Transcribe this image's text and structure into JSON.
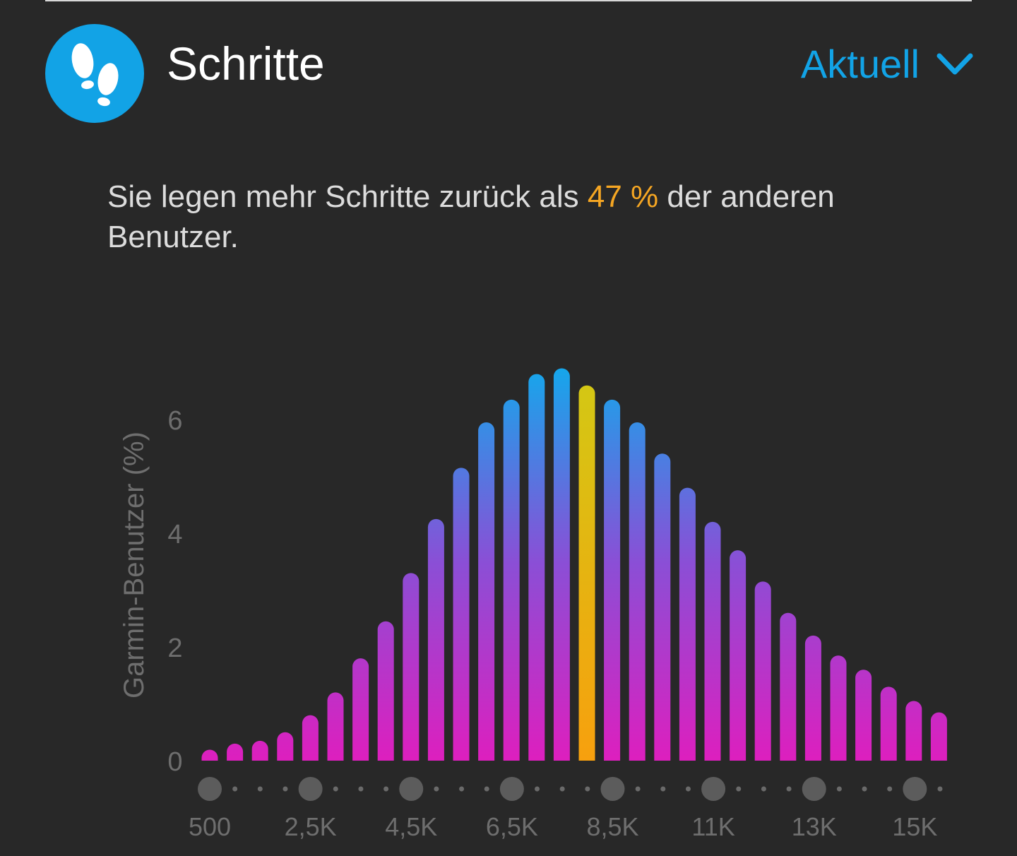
{
  "header": {
    "title": "Schritte",
    "period_label": "Aktuell",
    "icon": "footprints-icon",
    "icon_bg_color": "#12a3e6"
  },
  "summary": {
    "text_before": "Sie legen mehr Schritte zurück als ",
    "highlight": "47 %",
    "text_after": " der anderen Benutzer.",
    "highlight_color": "#f5a623"
  },
  "chart_data": {
    "type": "bar",
    "ylabel": "Garmin-Benutzer (%)",
    "y_ticks": [
      "0",
      "2",
      "4",
      "6"
    ],
    "ylim": [
      0,
      7
    ],
    "x_tick_labels": [
      "500",
      "2,5K",
      "4,5K",
      "6,5K",
      "8,5K",
      "11K",
      "13K",
      "15K"
    ],
    "values": [
      0.1,
      0.3,
      0.35,
      0.5,
      0.8,
      1.2,
      1.8,
      2.45,
      3.3,
      4.25,
      5.15,
      5.95,
      6.35,
      6.8,
      6.9,
      6.6,
      6.35,
      5.95,
      5.4,
      4.8,
      4.2,
      3.7,
      3.15,
      2.6,
      2.2,
      1.85,
      1.6,
      1.3,
      1.05,
      0.85
    ],
    "highlight_index": 15,
    "gradient_colors": {
      "top": "#12a9ec",
      "mid": "#8a4fd6",
      "bottom": "#dd1fbe"
    },
    "highlight_colors": {
      "top": "#d4c714",
      "bottom": "#f7a00e"
    }
  }
}
